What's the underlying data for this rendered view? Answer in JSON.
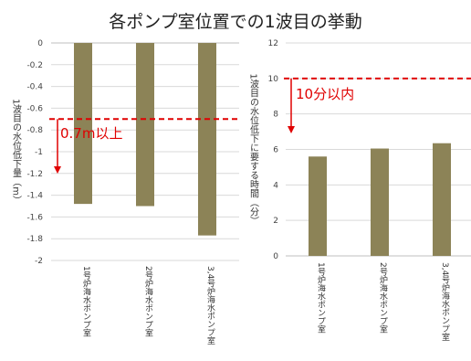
{
  "page": {
    "title": "各ポンプ室位置での1波目の挙動"
  },
  "chart_data": [
    {
      "type": "bar",
      "ylabel": "1波目の水位低下量（m）",
      "categories": [
        "1号炉海水ポンプ室",
        "2号炉海水ポンプ室",
        "3,4号炉海水ポンプ室"
      ],
      "values": [
        -1.48,
        -1.5,
        -1.77
      ],
      "ylim": [
        -2,
        0
      ],
      "yticks": [
        0,
        -0.2,
        -0.4,
        -0.6,
        -0.8,
        -1,
        -1.2,
        -1.4,
        -1.6,
        -1.8,
        -2
      ],
      "ytick_labels": [
        "0",
        "-0.2",
        "-0.4",
        "-0.6",
        "-0.8",
        "-1",
        "-1.2",
        "-1.4",
        "-1.6",
        "-1.8",
        "-2"
      ],
      "threshold": -0.7,
      "annotation": "0.7m以上",
      "bar_color": "#8c8357",
      "line_color": "#e00000",
      "grid": true
    },
    {
      "type": "bar",
      "ylabel": "1波目の水位低下に要する時間（分）",
      "categories": [
        "1号炉海水ポンプ室",
        "2号炉海水ポンプ室",
        "3,4号炉海水ポンプ室"
      ],
      "values": [
        5.6,
        6.05,
        6.35
      ],
      "ylim": [
        0,
        12
      ],
      "yticks": [
        0,
        2,
        4,
        6,
        8,
        10,
        12
      ],
      "ytick_labels": [
        "0",
        "2",
        "4",
        "6",
        "8",
        "10",
        "12"
      ],
      "threshold": 10,
      "annotation": "10分以内",
      "bar_color": "#8c8357",
      "line_color": "#e00000",
      "grid": true
    }
  ]
}
